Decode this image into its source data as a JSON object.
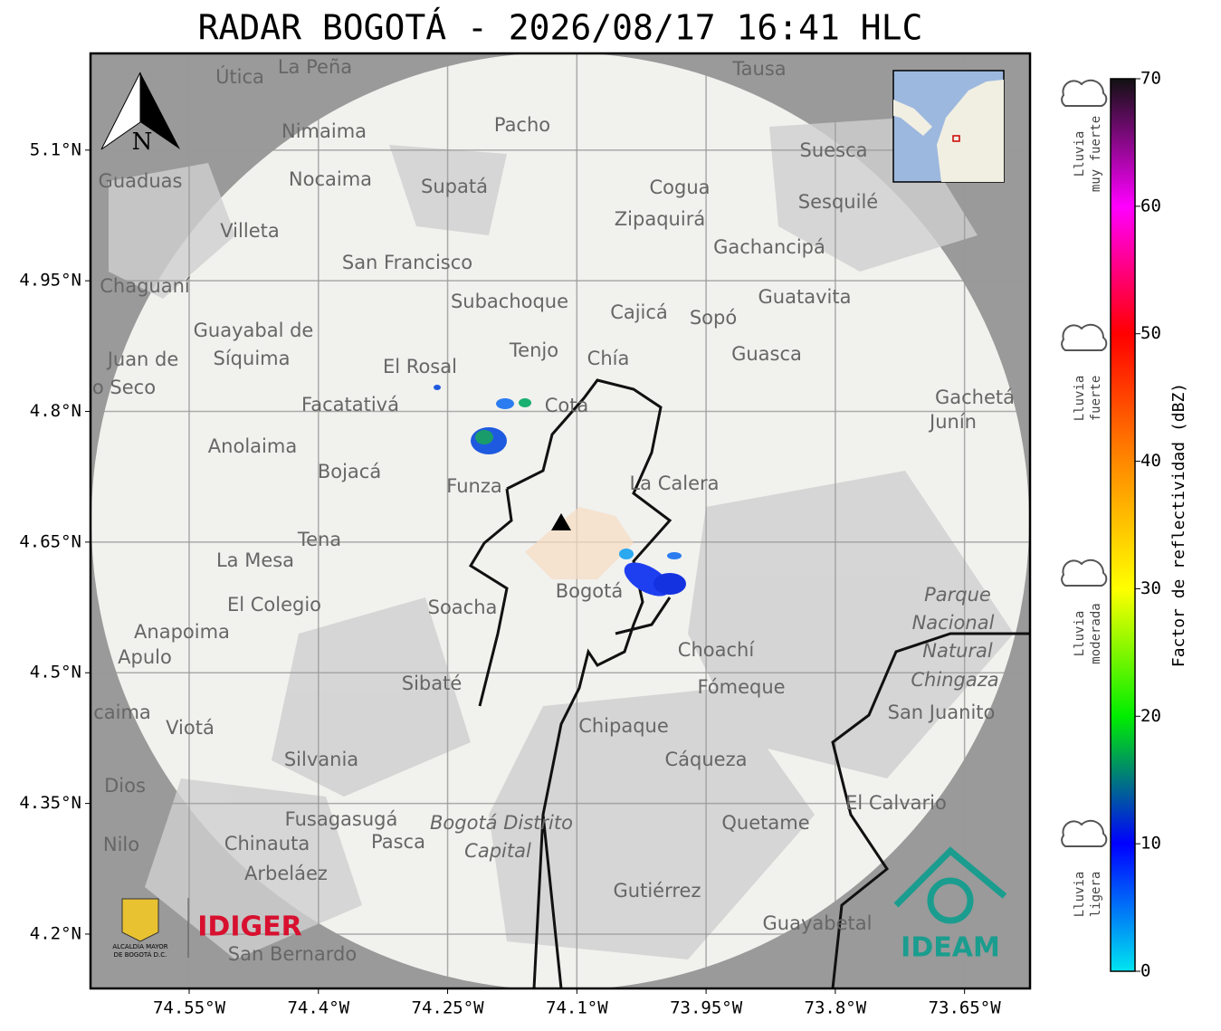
{
  "title": "RADAR BOGOTÁ - 2026/08/17 16:41 HLC",
  "map": {
    "xlim": [
      -74.6645,
      -73.574
    ],
    "ylim": [
      4.1376,
      5.211
    ],
    "yticks": [
      {
        "value": 5.1,
        "label": "5.1°N"
      },
      {
        "value": 4.95,
        "label": "4.95°N"
      },
      {
        "value": 4.8,
        "label": "4.8°N"
      },
      {
        "value": 4.65,
        "label": "4.65°N"
      },
      {
        "value": 4.5,
        "label": "4.5°N"
      },
      {
        "value": 4.35,
        "label": "4.35°N"
      },
      {
        "value": 4.2,
        "label": "4.2°N"
      }
    ],
    "xticks": [
      {
        "value": -74.55,
        "label": "74.55°W"
      },
      {
        "value": -74.4,
        "label": "74.4°W"
      },
      {
        "value": -74.25,
        "label": "74.25°W"
      },
      {
        "value": -74.1,
        "label": "74.1°W"
      },
      {
        "value": -73.95,
        "label": "73.95°W"
      },
      {
        "value": -73.8,
        "label": "73.8°W"
      },
      {
        "value": -73.65,
        "label": "73.65°W"
      }
    ],
    "grid": true,
    "places": [
      "La Peña",
      "Útica",
      "Tausa",
      "Pacho",
      "Nimaima",
      "Guaduas",
      "Nocaima",
      "Supatá",
      "Suesca",
      "Cogua",
      "Sesquilé",
      "Zipaquirá",
      "Villeta",
      "Gachancipá",
      "San Francisco",
      "Chaguaní",
      "Guatavita",
      "Subachoque",
      "Cajicá",
      "Sopó",
      "Guayabal de",
      "Síquima",
      "Tenjo",
      "Chía",
      "Guasca",
      "El Rosal",
      "Juan de",
      "o Seco",
      "Facatativá",
      "Cota",
      "Gachetá",
      "Junín",
      "Anolaima",
      "Bojacá",
      "Funza",
      "La Calera",
      "Tena",
      "La Mesa",
      "Parque",
      "Nacional",
      "Natural",
      "Chingaza",
      "El Colegio",
      "Soacha",
      "Bogotá",
      "Anapoima",
      "Apulo",
      "Choachí",
      "Sibaté",
      "Fómeque",
      "San Juanito",
      "caima",
      "Viotá",
      "Chipaque",
      "Silvania",
      "Cáqueza",
      "Dios",
      "El Calvario",
      "Fusagasugá",
      "Bogotá Distrito",
      "Capital",
      "Quetame",
      "Nilo",
      "Chinauta",
      "Pasca",
      "Arbeláez",
      "Gutiérrez",
      "Guayabetal",
      "San Bernardo"
    ],
    "north": "N",
    "logos": {
      "alcaldia": [
        "ALCALDÍA MAYOR",
        "DE BOGOTÁ D.C."
      ],
      "idiger": "IDIGER",
      "ideam": "IDEAM"
    }
  },
  "colorbar": {
    "label": "Factor de reflectividad (dBZ)",
    "lim": [
      0,
      70
    ],
    "ticks": [
      0,
      10,
      20,
      30,
      40,
      50,
      60,
      70
    ],
    "stops": [
      "#00e5f0",
      "#0000ff",
      "#00ee00",
      "#ffff00",
      "#ff8800",
      "#ff0000",
      "#ff00ff",
      "#111111"
    ]
  },
  "legend": [
    [
      "Lluvia",
      "muy fuerte"
    ],
    [
      "Lluvia",
      "fuerte"
    ],
    [
      "Lluvia",
      "moderada"
    ],
    [
      "Lluvia",
      "ligera"
    ]
  ]
}
